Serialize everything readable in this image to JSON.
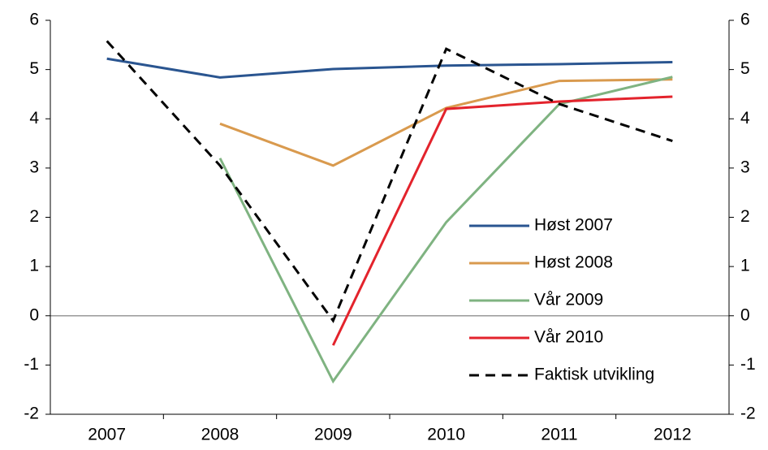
{
  "chart_data": {
    "type": "line",
    "categories": [
      "2007",
      "2008",
      "2009",
      "2010",
      "2011",
      "2012"
    ],
    "series": [
      {
        "name": "Høst 2007",
        "color": "#2a5590",
        "dash": false,
        "values": [
          5.22,
          4.84,
          5.01,
          5.08,
          5.11,
          5.15
        ]
      },
      {
        "name": "Høst 2008",
        "color": "#d99a4e",
        "dash": false,
        "values": [
          null,
          3.9,
          3.05,
          4.22,
          4.77,
          4.8
        ]
      },
      {
        "name": "Vår 2009",
        "color": "#7fb381",
        "dash": false,
        "values": [
          null,
          3.2,
          -1.33,
          1.9,
          4.3,
          4.85
        ]
      },
      {
        "name": "Vår 2010",
        "color": "#e3232c",
        "dash": false,
        "values": [
          null,
          null,
          -0.6,
          4.2,
          4.35,
          4.45
        ]
      },
      {
        "name": "Faktisk utvikling",
        "color": "#000000",
        "dash": true,
        "values": [
          5.58,
          3.05,
          -0.1,
          5.42,
          4.3,
          3.55
        ]
      }
    ],
    "ylim": [
      -2,
      6
    ],
    "yticks": [
      -2,
      -1,
      0,
      1,
      2,
      3,
      4,
      5,
      6
    ],
    "y2lim": [
      -2,
      6
    ],
    "y2ticks": [
      -2,
      -1,
      0,
      1,
      2,
      3,
      4,
      5,
      6
    ],
    "legend": "lower right"
  }
}
